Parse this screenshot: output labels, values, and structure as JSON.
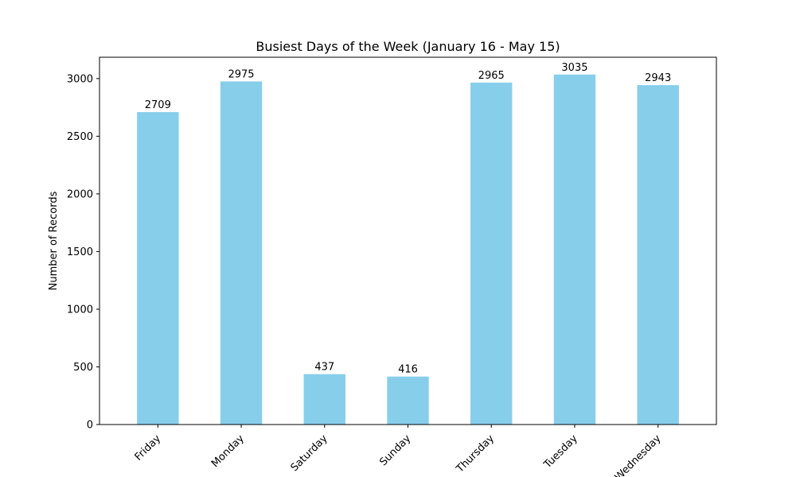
{
  "chart_data": {
    "type": "bar",
    "title": "Busiest Days of the Week (January 16 - May 15)",
    "xlabel": "",
    "ylabel": "Number of Records",
    "categories": [
      "Friday",
      "Monday",
      "Saturday",
      "Sunday",
      "Thursday",
      "Tuesday",
      "Wednesday"
    ],
    "values": [
      2709,
      2975,
      437,
      416,
      2965,
      3035,
      2943
    ],
    "data_labels": [
      "2709",
      "2975",
      "437",
      "416",
      "2965",
      "3035",
      "2943"
    ],
    "ylim": [
      0,
      3185
    ],
    "y_ticks": [
      0,
      500,
      1000,
      1500,
      2000,
      2500,
      3000
    ],
    "y_tick_labels": [
      "0",
      "500",
      "1000",
      "1500",
      "2000",
      "2500",
      "3000"
    ],
    "x_tick_rotation_deg": 45,
    "grid": false,
    "legend": "none",
    "bar_color": "#87ceeb"
  }
}
